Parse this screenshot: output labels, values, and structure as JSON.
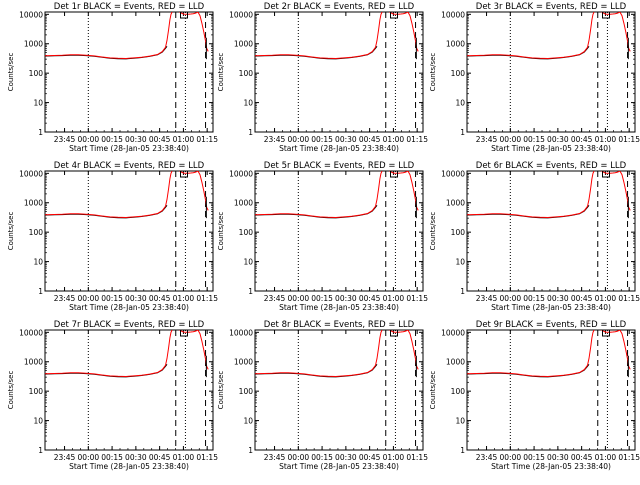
{
  "chart_data": [
    {
      "type": "line",
      "title": "Det 1r BLACK = Events, RED = LLD",
      "xlabel": "Start Time (28-Jan-05 23:38:40)",
      "ylabel": "Counts/sec"
    },
    {
      "type": "line",
      "title": "Det 2r BLACK = Events, RED = LLD",
      "xlabel": "Start Time (28-Jan-05 23:38:40)",
      "ylabel": "Counts/sec"
    },
    {
      "type": "line",
      "title": "Det 3r BLACK = Events, RED = LLD",
      "xlabel": "Start Time (28-Jan-05 23:38:40)",
      "ylabel": "Counts/sec"
    },
    {
      "type": "line",
      "title": "Det 4r BLACK = Events, RED = LLD",
      "xlabel": "Start Time (28-Jan-05 23:38:40)",
      "ylabel": "Counts/sec"
    },
    {
      "type": "line",
      "title": "Det 5r BLACK = Events, RED = LLD",
      "xlabel": "Start Time (28-Jan-05 23:38:40)",
      "ylabel": "Counts/sec"
    },
    {
      "type": "line",
      "title": "Det 6r BLACK = Events, RED = LLD",
      "xlabel": "Start Time (28-Jan-05 23:38:40)",
      "ylabel": "Counts/sec"
    },
    {
      "type": "line",
      "title": "Det 7r BLACK = Events, RED = LLD",
      "xlabel": "Start Time (28-Jan-05 23:38:40)",
      "ylabel": "Counts/sec"
    },
    {
      "type": "line",
      "title": "Det 8r BLACK = Events, RED = LLD",
      "xlabel": "Start Time (28-Jan-05 23:38:40)",
      "ylabel": "Counts/sec"
    },
    {
      "type": "line",
      "title": "Det 9r BLACK = Events, RED = LLD",
      "xlabel": "Start Time (28-Jan-05 23:38:40)",
      "ylabel": "Counts/sec"
    }
  ],
  "shared": {
    "x_tick_labels": [
      "23:45",
      "00:00",
      "00:15",
      "00:30",
      "00:45",
      "01:00",
      "01:15"
    ],
    "x_tick_minutes": [
      6.33,
      21.33,
      36.33,
      51.33,
      66.33,
      81.33,
      96.33
    ],
    "xlim_minutes": [
      -6,
      100
    ],
    "y_scale": "log",
    "ylim": [
      1,
      12000
    ],
    "y_tick_labels": [
      "1",
      "10",
      "100",
      "1000",
      "10000"
    ],
    "y_tick_values": [
      1,
      10,
      100,
      1000,
      10000
    ],
    "dotted_lines_minutes": [
      21.33,
      82.6
    ],
    "dashed_lines_minutes": [
      76.5,
      95.3
    ],
    "colors": {
      "events": "#000000",
      "lld": "#ff0000",
      "frame": "#000000"
    },
    "series_events": {
      "x": [
        -6,
        0,
        5,
        10,
        15,
        20,
        25,
        30,
        35,
        40,
        45,
        50,
        55,
        60,
        65,
        68,
        70,
        71
      ],
      "y": [
        380,
        390,
        395,
        405,
        405,
        395,
        375,
        345,
        320,
        310,
        305,
        320,
        340,
        370,
        420,
        520,
        700,
        820
      ]
    },
    "series_lld": {
      "x": [
        -6,
        0,
        5,
        10,
        15,
        20,
        25,
        30,
        35,
        40,
        45,
        50,
        55,
        60,
        65,
        68,
        70,
        71,
        72,
        72.8,
        73.5,
        74.2
      ],
      "y": [
        390,
        400,
        405,
        420,
        420,
        405,
        385,
        355,
        330,
        320,
        315,
        330,
        350,
        380,
        430,
        540,
        760,
        1300,
        3000,
        6500,
        10000,
        12000
      ]
    },
    "series_lld_2": {
      "x": [
        78.8,
        80,
        81.5,
        83,
        84.5,
        86,
        87.5,
        89,
        90.5,
        91.8,
        93,
        94.2,
        95.3,
        96,
        97
      ],
      "y": [
        12000,
        11000,
        10200,
        10000,
        10100,
        10300,
        10500,
        11000,
        12000,
        9000,
        5000,
        2500,
        1200,
        700,
        550
      ]
    },
    "events_spike_x": 95.8
  }
}
